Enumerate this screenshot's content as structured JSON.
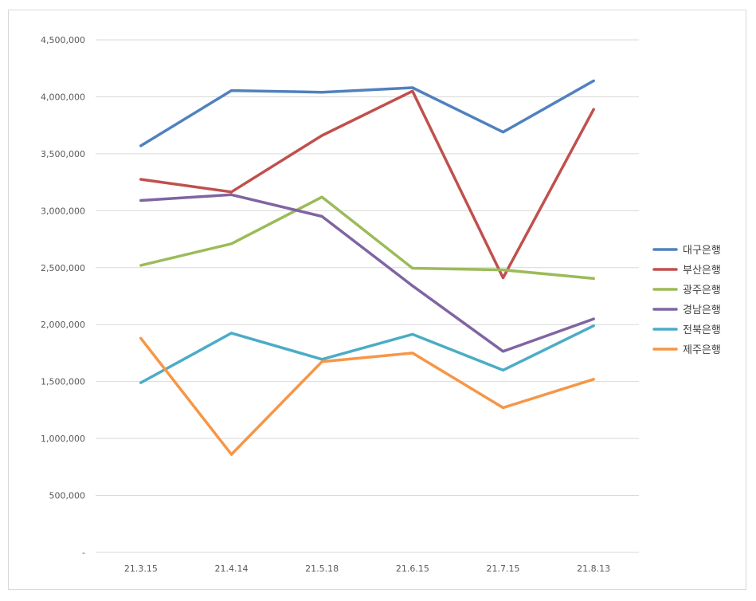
{
  "chart_data": {
    "type": "line",
    "title": "",
    "xlabel": "",
    "ylabel": "",
    "categories": [
      "21.3.15",
      "21.4.14",
      "21.5.18",
      "21.6.15",
      "21.7.15",
      "21.8.13"
    ],
    "ylim": [
      0,
      4500000
    ],
    "yticks": [
      0,
      500000,
      1000000,
      1500000,
      2000000,
      2500000,
      3000000,
      3500000,
      4000000,
      4500000
    ],
    "ytick_labels": [
      "-",
      "500,000",
      "1,000,000",
      "1,500,000",
      "2,000,000",
      "2,500,000",
      "3,000,000",
      "3,500,000",
      "4,000,000",
      "4,500,000"
    ],
    "grid": true,
    "legend_position": "right",
    "series": [
      {
        "name": "대구은행",
        "color": "#4f81bd",
        "values": [
          3570000,
          4055000,
          4040000,
          4080000,
          3690000,
          4140000
        ]
      },
      {
        "name": "부산은행",
        "color": "#c0504d",
        "values": [
          3275000,
          3165000,
          3660000,
          4050000,
          2410000,
          3890000
        ]
      },
      {
        "name": "광주은행",
        "color": "#9bbb59",
        "values": [
          2520000,
          2710000,
          3120000,
          2495000,
          2480000,
          2405000
        ]
      },
      {
        "name": "경남은행",
        "color": "#8064a2",
        "values": [
          3090000,
          3140000,
          2950000,
          2340000,
          1765000,
          2050000
        ]
      },
      {
        "name": "전북은행",
        "color": "#4bacc6",
        "values": [
          1490000,
          1925000,
          1695000,
          1915000,
          1600000,
          1990000
        ]
      },
      {
        "name": "제주은행",
        "color": "#f79646",
        "values": [
          1880000,
          860000,
          1675000,
          1750000,
          1270000,
          1520000
        ]
      }
    ]
  }
}
